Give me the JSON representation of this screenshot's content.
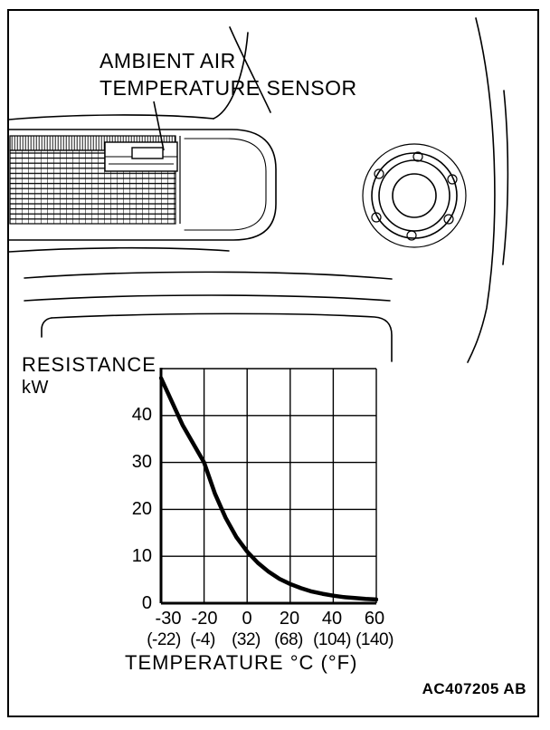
{
  "figure": {
    "label_line1": "AMBIENT AIR",
    "label_line2": "TEMPERATURE SENSOR",
    "code": "AC407205 AB"
  },
  "chart": {
    "y_title": "RESISTANCE",
    "y_unit": "kW",
    "x_title": "TEMPERATURE °C (°F)",
    "y_ticks": [
      "40",
      "30",
      "20",
      "10",
      "0"
    ],
    "x_ticks_celsius": [
      "-30",
      "-20",
      "0",
      "20",
      "40",
      "60"
    ],
    "x_ticks_fahrenheit": [
      "(-22)",
      "(-4)",
      "(32)",
      "(68)",
      "(104)",
      "(140)"
    ]
  },
  "chart_data": {
    "type": "line",
    "title": "",
    "xlabel": "TEMPERATURE °C (°F)",
    "ylabel": "RESISTANCE kW",
    "x": [
      -30,
      -25,
      -20,
      -15,
      -10,
      -5,
      0,
      5,
      10,
      15,
      20,
      25,
      30,
      35,
      40,
      45,
      50,
      55,
      60
    ],
    "values": [
      48,
      38,
      30,
      23.4,
      18.2,
      14.1,
      11,
      8.6,
      6.7,
      5.2,
      4.1,
      3.2,
      2.5,
      2.0,
      1.6,
      1.3,
      1.1,
      0.9,
      0.8
    ],
    "xlim": [
      -30,
      60
    ],
    "ylim": [
      0,
      50
    ],
    "grid": true,
    "legend": "none",
    "x_axis_note": "first grid column spans -30 to -20; remaining columns 20 degrees C each"
  }
}
